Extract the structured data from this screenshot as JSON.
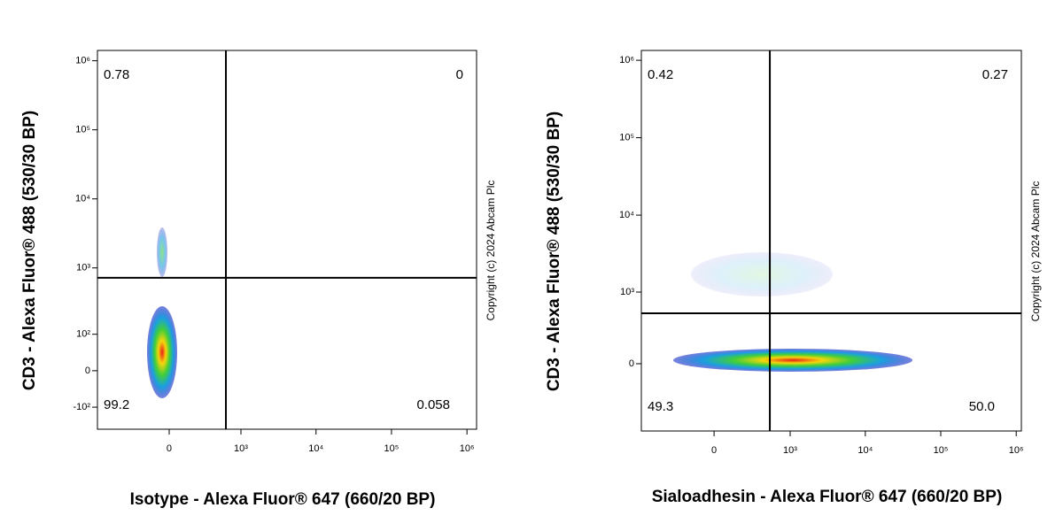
{
  "chart_data": [
    {
      "type": "scatter",
      "x_label": "Isotype - Alexa Fluor® 647 (660/20 BP)",
      "y_label": "CD3 - Alexa Fluor® 488 (530/30 BP)",
      "scale": "asinh",
      "x_cofactor": 227,
      "y_cofactor": 65,
      "xlim": [
        -1000,
        1340000
      ],
      "ylim": [
        -224,
        1410000
      ],
      "xticks": [
        0,
        {
          "value": 1000,
          "label": "10³"
        },
        {
          "value": 10000,
          "label": "10⁴"
        },
        {
          "value": 100000,
          "label": "10⁵"
        },
        {
          "value": 1000000,
          "label": "10⁶"
        }
      ],
      "yticks": [
        {
          "value": -100,
          "label": "-10²"
        },
        0,
        {
          "value": 100,
          "label": "10²"
        },
        {
          "value": 1000,
          "label": "10³"
        },
        {
          "value": 10000,
          "label": "10⁴"
        },
        {
          "value": 100000,
          "label": "10⁵"
        },
        {
          "value": 1000000,
          "label": "10⁶"
        }
      ],
      "gate_x": 620,
      "gate_y": 720,
      "quadrant_values": [
        0.78,
        0,
        99.2,
        0.058
      ],
      "copyright": "Copyright (c) 2024 Abcam Plc"
    },
    {
      "type": "scatter",
      "x_label": "Sialoadhesin - Alexa Fluor® 647 (660/20 BP)",
      "y_label": "CD3 - Alexa Fluor® 488 (530/30 BP)",
      "scale": "asinh",
      "x_cofactor": 198,
      "y_cofactor": 241,
      "xlim": [
        -900,
        1170000
      ],
      "ylim": [
        -875,
        1340000
      ],
      "xticks": [
        0,
        {
          "value": 1000,
          "label": "10³"
        },
        {
          "value": 10000,
          "label": "10⁴"
        },
        {
          "value": 100000,
          "label": "10⁵"
        },
        {
          "value": 1000000,
          "label": "10⁶"
        }
      ],
      "yticks": [
        0,
        {
          "value": 1000,
          "label": "10³"
        },
        {
          "value": 10000,
          "label": "10⁴"
        },
        {
          "value": 100000,
          "label": "10⁵"
        },
        {
          "value": 1000000,
          "label": "10⁶"
        }
      ],
      "gate_x": 525,
      "gate_y": 513,
      "quadrant_values": [
        0.42,
        0.27,
        49.3,
        50.0
      ],
      "value_labels": [
        "0.42",
        "0.27",
        "49.3",
        "50.0"
      ],
      "copyright": "Copyright (c) 2024 Abcam Plc"
    }
  ]
}
